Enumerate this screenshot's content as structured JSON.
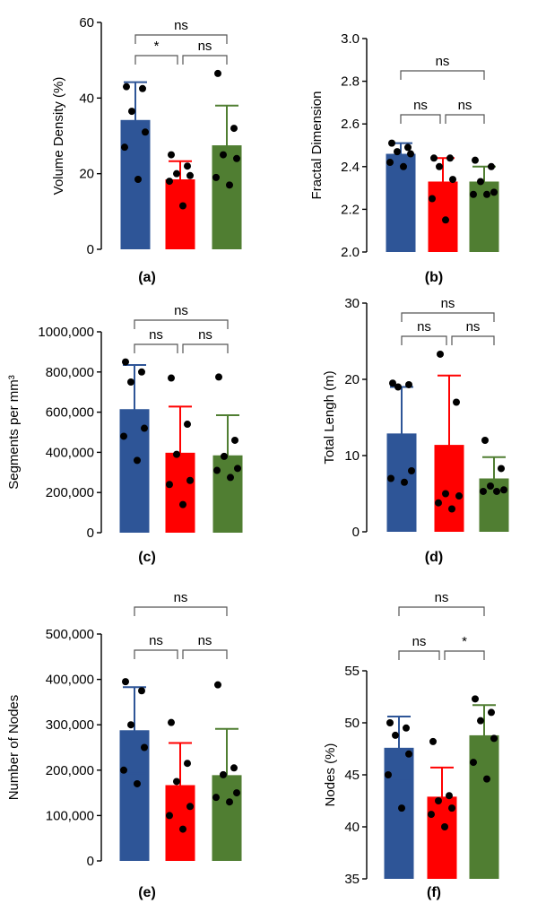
{
  "figure": {
    "colors": {
      "group1": "#2E5597",
      "group2": "#FF0000",
      "group3": "#507E32",
      "axis": "#000000",
      "bracket": "#555555"
    }
  },
  "chart_data": [
    {
      "type": "bar",
      "panel_label": "(a)",
      "ylabel": "Volume Density (%)",
      "ylim": [
        0,
        60
      ],
      "yticks": [
        0,
        20,
        40,
        60
      ],
      "tick_labels": [
        "0",
        "20",
        "40",
        "60"
      ],
      "series": [
        {
          "mean": 34.2,
          "sd": 10.0,
          "points": [
            43.0,
            42.5,
            36.5,
            31.0,
            27.0,
            18.5
          ]
        },
        {
          "mean": 18.5,
          "sd": 4.8,
          "points": [
            25.0,
            22.0,
            20.0,
            19.5,
            18.0,
            11.5
          ]
        },
        {
          "mean": 27.5,
          "sd": 10.5,
          "points": [
            46.5,
            32.0,
            25.0,
            24.0,
            19.0,
            17.0
          ]
        }
      ],
      "brackets": [
        {
          "from": 0,
          "to": 1,
          "label": "*"
        },
        {
          "from": 1,
          "to": 2,
          "label": "ns"
        },
        {
          "from": 0,
          "to": 2,
          "label": "ns"
        }
      ]
    },
    {
      "type": "bar",
      "panel_label": "(b)",
      "ylabel": "Fractal Dimension",
      "ylim": [
        2.0,
        3.0
      ],
      "yticks": [
        2.0,
        2.2,
        2.4,
        2.6,
        2.8,
        3.0
      ],
      "tick_labels": [
        "2.0",
        "2.2",
        "2.4",
        "2.6",
        "2.8",
        "3.0"
      ],
      "series": [
        {
          "mean": 2.46,
          "sd": 0.05,
          "points": [
            2.51,
            2.49,
            2.47,
            2.46,
            2.42,
            2.4
          ]
        },
        {
          "mean": 2.33,
          "sd": 0.11,
          "points": [
            2.44,
            2.44,
            2.4,
            2.34,
            2.25,
            2.15
          ]
        },
        {
          "mean": 2.33,
          "sd": 0.07,
          "points": [
            2.43,
            2.4,
            2.33,
            2.28,
            2.27,
            2.27
          ]
        }
      ],
      "brackets": [
        {
          "from": 0,
          "to": 1,
          "label": "ns"
        },
        {
          "from": 1,
          "to": 2,
          "label": "ns"
        },
        {
          "from": 0,
          "to": 2,
          "label": "ns"
        }
      ]
    },
    {
      "type": "bar",
      "panel_label": "(c)",
      "ylabel": "Segments per mm³",
      "ylim": [
        0,
        1000000
      ],
      "yticks": [
        0,
        200000,
        400000,
        600000,
        800000,
        1000000
      ],
      "tick_labels": [
        "0",
        "200,000",
        "400,000",
        "600,000",
        "800,000",
        "1000,000"
      ],
      "series": [
        {
          "mean": 615000,
          "sd": 220000,
          "points": [
            850000,
            800000,
            750000,
            520000,
            480000,
            360000
          ]
        },
        {
          "mean": 398000,
          "sd": 230000,
          "points": [
            770000,
            540000,
            390000,
            260000,
            240000,
            140000
          ]
        },
        {
          "mean": 385000,
          "sd": 200000,
          "points": [
            775000,
            460000,
            380000,
            320000,
            310000,
            275000
          ]
        }
      ],
      "brackets": [
        {
          "from": 0,
          "to": 1,
          "label": "ns"
        },
        {
          "from": 1,
          "to": 2,
          "label": "ns"
        },
        {
          "from": 0,
          "to": 2,
          "label": "ns"
        }
      ]
    },
    {
      "type": "bar",
      "panel_label": "(d)",
      "ylabel": "Total Lengh (m)",
      "ylim": [
        0,
        30
      ],
      "yticks": [
        0,
        10,
        20,
        30
      ],
      "tick_labels": [
        "0",
        "10",
        "20",
        "30"
      ],
      "series": [
        {
          "mean": 12.9,
          "sd": 6.1,
          "points": [
            19.5,
            19.3,
            19.0,
            8.0,
            7.0,
            6.5
          ]
        },
        {
          "mean": 11.4,
          "sd": 9.1,
          "points": [
            23.3,
            17.0,
            5.0,
            4.7,
            3.8,
            3.0
          ]
        },
        {
          "mean": 7.0,
          "sd": 2.8,
          "points": [
            12.0,
            8.3,
            6.0,
            5.5,
            5.3,
            5.3
          ]
        }
      ],
      "brackets": [
        {
          "from": 0,
          "to": 1,
          "label": "ns"
        },
        {
          "from": 1,
          "to": 2,
          "label": "ns"
        },
        {
          "from": 0,
          "to": 2,
          "label": "ns"
        }
      ]
    },
    {
      "type": "bar",
      "panel_label": "(e)",
      "ylabel": "Number of Nodes",
      "ylim": [
        0,
        500000
      ],
      "yticks": [
        0,
        100000,
        200000,
        300000,
        400000,
        500000
      ],
      "tick_labels": [
        "0",
        "100,000",
        "200,000",
        "300,000",
        "400,000",
        "500,000"
      ],
      "series": [
        {
          "mean": 288000,
          "sd": 95000,
          "points": [
            395000,
            375000,
            300000,
            250000,
            200000,
            170000
          ]
        },
        {
          "mean": 167000,
          "sd": 93000,
          "points": [
            305000,
            215000,
            175000,
            120000,
            100000,
            70000
          ]
        },
        {
          "mean": 189000,
          "sd": 102000,
          "points": [
            388000,
            205000,
            190000,
            150000,
            140000,
            130000
          ]
        }
      ],
      "brackets": [
        {
          "from": 0,
          "to": 1,
          "label": "ns"
        },
        {
          "from": 1,
          "to": 2,
          "label": "ns"
        },
        {
          "from": 0,
          "to": 2,
          "label": "ns"
        }
      ]
    },
    {
      "type": "bar",
      "panel_label": "(f)",
      "ylabel": "Nodes (%)",
      "ylim": [
        35,
        55
      ],
      "yticks": [
        35,
        40,
        45,
        50,
        55
      ],
      "tick_labels": [
        "35",
        "40",
        "45",
        "50",
        "55"
      ],
      "series": [
        {
          "mean": 47.6,
          "sd": 3.0,
          "points": [
            50.0,
            49.5,
            48.8,
            47.0,
            45.0,
            41.8
          ]
        },
        {
          "mean": 42.9,
          "sd": 2.8,
          "points": [
            48.2,
            43.0,
            42.5,
            41.8,
            41.2,
            40.0
          ]
        },
        {
          "mean": 48.8,
          "sd": 2.9,
          "points": [
            52.3,
            51.0,
            50.2,
            48.5,
            46.2,
            44.6
          ]
        }
      ],
      "brackets": [
        {
          "from": 0,
          "to": 1,
          "label": "ns"
        },
        {
          "from": 1,
          "to": 2,
          "label": "*"
        },
        {
          "from": 0,
          "to": 2,
          "label": "ns"
        }
      ]
    }
  ]
}
